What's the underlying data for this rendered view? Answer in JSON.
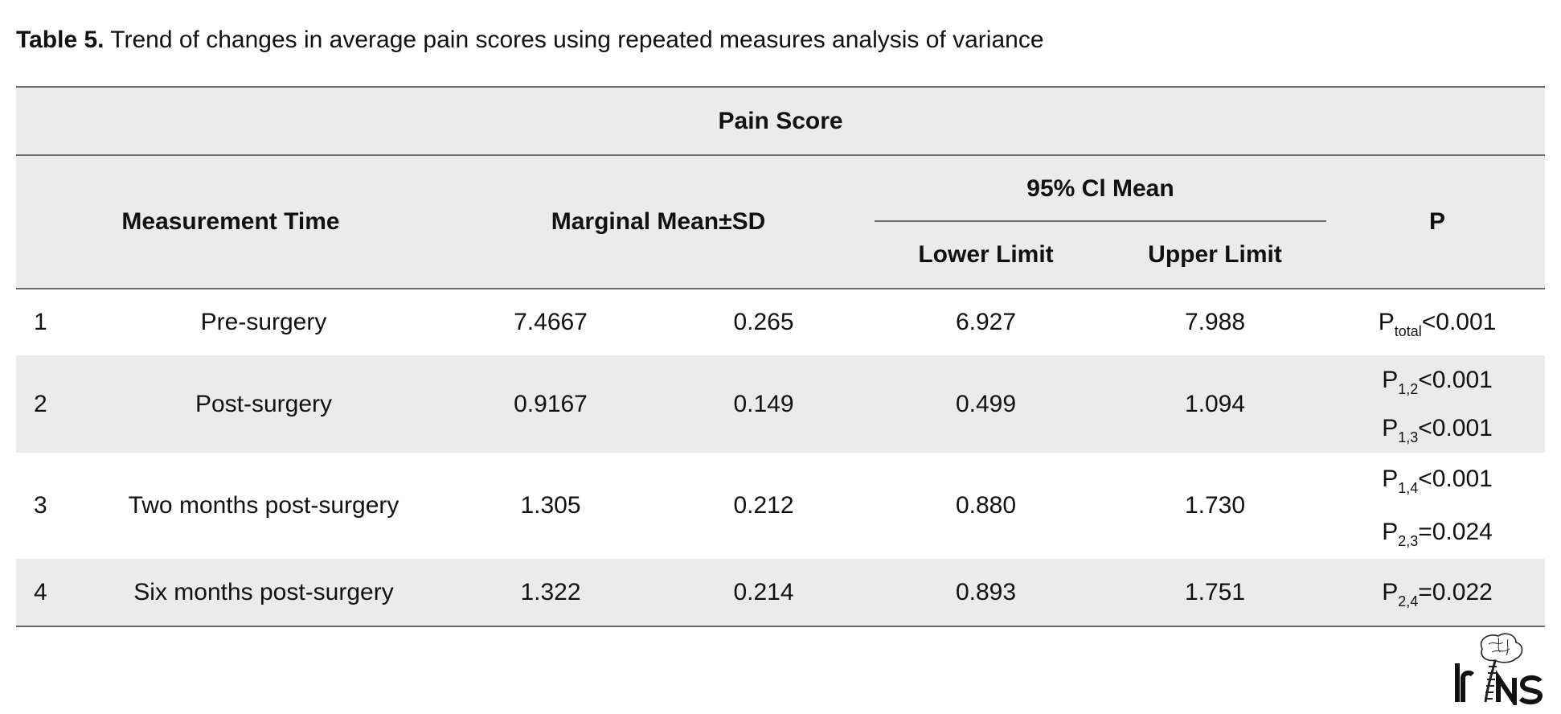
{
  "caption": {
    "label": "Table 5.",
    "text": " Trend of changes in average pain scores using repeated measures analysis of variance"
  },
  "table": {
    "group_header": "Pain Score",
    "headers": {
      "measurement_time": "Measurement Time",
      "marginal_mean_sd": "Marginal Mean±SD",
      "ci_mean": "95% Cl Mean",
      "lower_limit": "Lower Limit",
      "upper_limit": "Upper Limit",
      "p": "P"
    },
    "rows": [
      {
        "index": "1",
        "time": "Pre-surgery",
        "mean": "7.4667",
        "sd": "0.265",
        "lower": "6.927",
        "upper": "7.988"
      },
      {
        "index": "2",
        "time": "Post-surgery",
        "mean": "0.9167",
        "sd": "0.149",
        "lower": "0.499",
        "upper": "1.094"
      },
      {
        "index": "3",
        "time": "Two months post-surgery",
        "mean": "1.305",
        "sd": "0.212",
        "lower": "0.880",
        "upper": "1.730"
      },
      {
        "index": "4",
        "time": "Six months post-surgery",
        "mean": "1.322",
        "sd": "0.214",
        "lower": "0.893",
        "upper": "1.751"
      }
    ],
    "p_values": [
      {
        "p": "P",
        "sub": "total",
        "value": "<0.001"
      },
      {
        "p": "P",
        "sub": "1,2",
        "value": "<0.001"
      },
      {
        "p": "P",
        "sub": "1,3",
        "value": "<0.001"
      },
      {
        "p": "P",
        "sub": "1,4",
        "value": "<0.001"
      },
      {
        "p": "P",
        "sub": "2,3",
        "value": "=0.024"
      },
      {
        "p": "P",
        "sub": "2,4",
        "value": "=0.022"
      }
    ]
  },
  "logo": {
    "text": "IrJNS",
    "icon": "brain-spine-logo-icon"
  }
}
